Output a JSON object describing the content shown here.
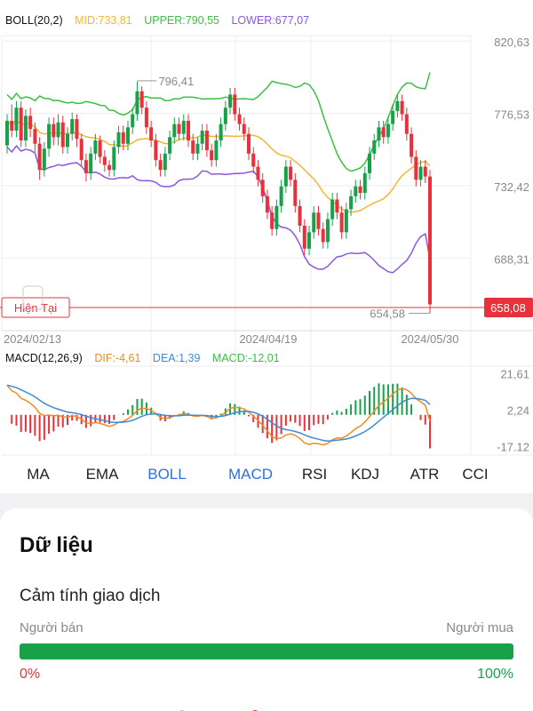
{
  "boll_legend": {
    "name": "BOLL(20,2)",
    "mid": "MID:733,81",
    "upper": "UPPER:790,55",
    "lower": "LOWER:677,07"
  },
  "macd_legend": {
    "name": "MACD(12,26,9)",
    "dif": "DIF:-4,61",
    "dea": "DEA:1,39",
    "macd": "MACD:-12,01"
  },
  "colors": {
    "up": "#17a24a",
    "down": "#e8313a",
    "mid": "#f2b630",
    "upper": "#3cbf45",
    "lower": "#8a57e0",
    "dif": "#f08a24",
    "dea": "#3d8bd8",
    "accent": "#2f6fe0"
  },
  "chart_data": [
    {
      "type": "candlestick",
      "x_labels": [
        "2024/02/13",
        "2024/04/19",
        "2024/05/30"
      ],
      "y_ticks": [
        "820,63",
        "776,53",
        "732,42",
        "688,31"
      ],
      "ylim": [
        644,
        824
      ],
      "current_price": 658.08,
      "current_price_label": "658,08",
      "current_label": "Hiện Tại",
      "high_annotation": {
        "value": 796.41,
        "label": "796,41"
      },
      "low_annotation": {
        "value": 654.58,
        "label": "654,58"
      },
      "candles": [
        [
          757,
          772,
          752,
          776
        ],
        [
          772,
          766,
          762,
          782
        ],
        [
          766,
          780,
          762,
          784
        ],
        [
          780,
          760,
          756,
          784
        ],
        [
          760,
          775,
          756,
          779
        ],
        [
          775,
          767,
          762,
          780
        ],
        [
          767,
          758,
          753,
          771
        ],
        [
          758,
          742,
          736,
          762
        ],
        [
          742,
          755,
          738,
          759
        ],
        [
          755,
          770,
          750,
          774
        ],
        [
          770,
          762,
          757,
          774
        ],
        [
          762,
          771,
          757,
          776
        ],
        [
          771,
          756,
          752,
          775
        ],
        [
          756,
          764,
          752,
          768
        ],
        [
          764,
          773,
          760,
          777
        ],
        [
          773,
          761,
          756,
          776
        ],
        [
          761,
          748,
          744,
          764
        ],
        [
          748,
          740,
          735,
          752
        ],
        [
          740,
          752,
          736,
          756
        ],
        [
          752,
          760,
          748,
          764
        ],
        [
          760,
          750,
          746,
          763
        ],
        [
          750,
          745,
          741,
          754
        ],
        [
          745,
          742,
          738,
          748
        ],
        [
          742,
          756,
          738,
          760
        ],
        [
          756,
          765,
          752,
          769
        ],
        [
          765,
          758,
          754,
          769
        ],
        [
          758,
          768,
          754,
          772
        ],
        [
          768,
          776,
          764,
          780
        ],
        [
          776,
          790,
          772,
          796
        ],
        [
          790,
          780,
          776,
          793
        ],
        [
          780,
          768,
          764,
          784
        ],
        [
          768,
          760,
          756,
          772
        ],
        [
          760,
          748,
          744,
          764
        ],
        [
          748,
          742,
          738,
          752
        ],
        [
          742,
          752,
          738,
          756
        ],
        [
          752,
          762,
          748,
          766
        ],
        [
          762,
          770,
          758,
          774
        ],
        [
          770,
          764,
          760,
          774
        ],
        [
          764,
          772,
          760,
          776
        ],
        [
          772,
          760,
          756,
          776
        ],
        [
          760,
          752,
          748,
          764
        ],
        [
          752,
          758,
          748,
          762
        ],
        [
          758,
          766,
          754,
          770
        ],
        [
          766,
          754,
          750,
          770
        ],
        [
          754,
          748,
          744,
          758
        ],
        [
          748,
          760,
          744,
          764
        ],
        [
          760,
          770,
          756,
          774
        ],
        [
          770,
          780,
          766,
          784
        ],
        [
          780,
          788,
          776,
          792
        ],
        [
          788,
          776,
          772,
          792
        ],
        [
          776,
          770,
          766,
          780
        ],
        [
          770,
          764,
          760,
          774
        ],
        [
          764,
          752,
          748,
          768
        ],
        [
          752,
          744,
          740,
          756
        ],
        [
          744,
          736,
          732,
          748
        ],
        [
          736,
          726,
          722,
          740
        ],
        [
          726,
          716,
          712,
          730
        ],
        [
          716,
          706,
          702,
          720
        ],
        [
          706,
          720,
          702,
          724
        ],
        [
          720,
          732,
          716,
          736
        ],
        [
          732,
          744,
          728,
          748
        ],
        [
          744,
          736,
          732,
          748
        ],
        [
          736,
          720,
          716,
          740
        ],
        [
          720,
          708,
          704,
          724
        ],
        [
          708,
          694,
          690,
          712
        ],
        [
          694,
          704,
          690,
          708
        ],
        [
          704,
          716,
          700,
          720
        ],
        [
          716,
          706,
          702,
          720
        ],
        [
          706,
          698,
          694,
          710
        ],
        [
          698,
          712,
          694,
          716
        ],
        [
          712,
          724,
          708,
          728
        ],
        [
          724,
          716,
          712,
          728
        ],
        [
          716,
          704,
          700,
          720
        ],
        [
          704,
          718,
          700,
          722
        ],
        [
          718,
          726,
          714,
          730
        ],
        [
          726,
          732,
          722,
          736
        ],
        [
          732,
          728,
          724,
          736
        ],
        [
          728,
          740,
          724,
          744
        ],
        [
          740,
          752,
          736,
          756
        ],
        [
          752,
          760,
          748,
          764
        ],
        [
          760,
          768,
          756,
          772
        ],
        [
          768,
          762,
          758,
          772
        ],
        [
          762,
          770,
          758,
          774
        ],
        [
          770,
          778,
          766,
          782
        ],
        [
          778,
          784,
          774,
          788
        ],
        [
          784,
          776,
          772,
          788
        ],
        [
          776,
          764,
          760,
          780
        ],
        [
          764,
          750,
          746,
          768
        ],
        [
          750,
          736,
          732,
          754
        ],
        [
          736,
          744,
          732,
          748
        ],
        [
          744,
          738,
          734,
          748
        ],
        [
          738,
          660,
          654.58,
          742
        ]
      ]
    },
    {
      "type": "macd",
      "y_ticks": [
        "21,61",
        "2,24",
        "-17.12"
      ],
      "ylim": [
        -19,
        23
      ]
    }
  ],
  "tabs": [
    "MA",
    "EMA",
    "BOLL",
    "MACD",
    "RSI",
    "KDJ",
    "ATR",
    "CCI"
  ],
  "active_tabs": [
    "BOLL",
    "MACD"
  ],
  "data_section": {
    "title": "Dữ liệu",
    "sentiment_title": "Cảm tính giao dịch",
    "seller_label": "Người bán",
    "buyer_label": "Người mua",
    "buyer_pct": 100,
    "left_pct_label": "0%",
    "right_pct_label": "100%"
  }
}
